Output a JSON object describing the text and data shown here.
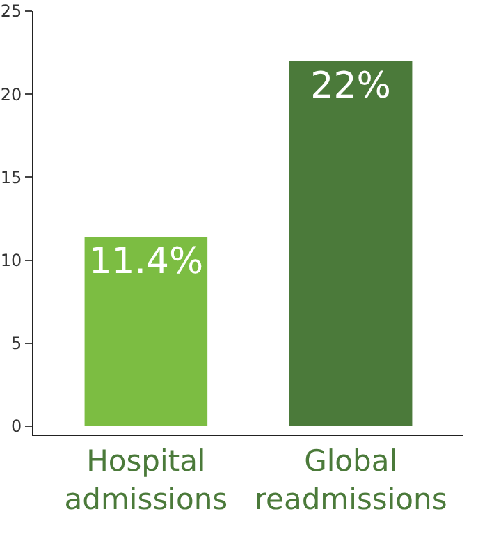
{
  "chart_data": {
    "type": "bar",
    "categories": [
      "Hospital admissions",
      "Global readmissions"
    ],
    "values": [
      11.4,
      22
    ],
    "colors": [
      "#7cbd42",
      "#4b7a3a"
    ],
    "value_labels": [
      "11.4%",
      "22%"
    ],
    "ylim": [
      -0.5,
      25
    ],
    "yticks": [
      0,
      5,
      10,
      15,
      20,
      25
    ],
    "grid": false,
    "legend": false
  }
}
